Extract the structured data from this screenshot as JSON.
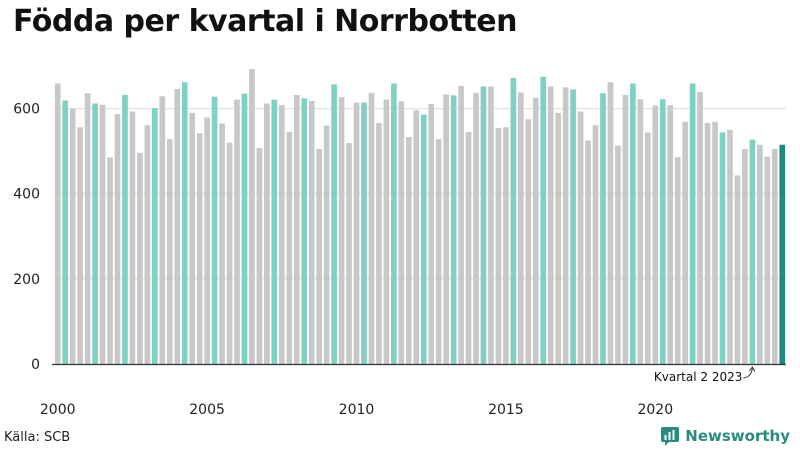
{
  "title": "Födda per kvartal i Norrbotten",
  "source": "Källa: SCB",
  "brand": "Newsworthy",
  "colors": {
    "grey": "#c8c8c8",
    "q2": "#7fd1c6",
    "latest": "#1a8c80",
    "axis": "#333333",
    "grid": "#dddddd",
    "brand": "#2a8c80"
  },
  "chart_data": {
    "type": "bar",
    "title": "Födda per kvartal i Norrbotten",
    "xlabel": "",
    "ylabel": "",
    "ylim": [
      0,
      700
    ],
    "y_ticks": [
      0,
      200,
      400,
      600
    ],
    "y_tick_labels": [
      "0",
      "200",
      "400",
      "600"
    ],
    "x_tick_years": [
      2000,
      2005,
      2010,
      2015,
      2020
    ],
    "x_tick_labels": [
      "2000",
      "2005",
      "2010",
      "2015",
      "2020"
    ],
    "start_year": 2000,
    "highlight_quarter": 2,
    "annotation": "Kvartal 2 2023",
    "values": [
      659,
      619,
      600,
      556,
      636,
      612,
      609,
      485,
      587,
      632,
      593,
      496,
      561,
      601,
      629,
      528,
      646,
      662,
      590,
      542,
      579,
      628,
      565,
      520,
      621,
      635,
      693,
      507,
      612,
      621,
      608,
      545,
      632,
      624,
      618,
      505,
      560,
      657,
      627,
      519,
      614,
      614,
      637,
      566,
      621,
      659,
      617,
      533,
      596,
      586,
      611,
      528,
      633,
      631,
      653,
      545,
      637,
      652,
      652,
      554,
      556,
      672,
      638,
      575,
      625,
      675,
      652,
      590,
      650,
      645,
      593,
      525,
      561,
      636,
      662,
      513,
      632,
      659,
      622,
      544,
      607,
      622,
      608,
      486,
      569,
      659,
      639,
      566,
      569,
      544,
      550,
      443,
      505,
      527,
      515,
      487,
      505,
      515
    ]
  }
}
